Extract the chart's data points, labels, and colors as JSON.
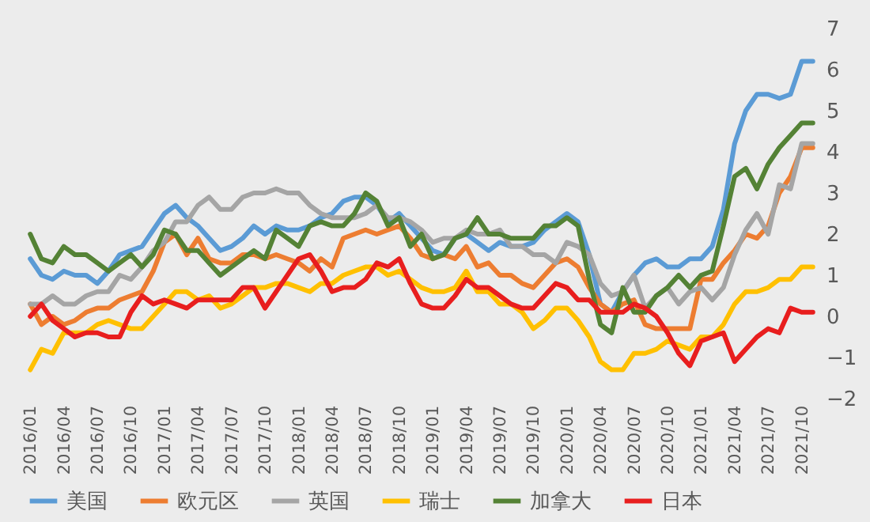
{
  "chart_data": {
    "type": "line",
    "categories": [
      "2016/01",
      null,
      null,
      "2016/04",
      null,
      null,
      "2016/07",
      null,
      null,
      "2016/10",
      null,
      null,
      "2017/01",
      null,
      null,
      "2017/04",
      null,
      null,
      "2017/07",
      null,
      null,
      "2017/10",
      null,
      null,
      "2018/01",
      null,
      null,
      "2018/04",
      null,
      null,
      "2018/07",
      null,
      null,
      "2018/10",
      null,
      null,
      "2019/01",
      null,
      null,
      "2019/04",
      null,
      null,
      "2019/07",
      null,
      null,
      "2019/10",
      null,
      null,
      "2020/01",
      null,
      null,
      "2020/04",
      null,
      null,
      "2020/07",
      null,
      null,
      "2020/10",
      null,
      null,
      "2021/01",
      null,
      null,
      "2021/04",
      null,
      null,
      "2021/07",
      null,
      null,
      "2021/10",
      null
    ],
    "series": [
      {
        "name": "美国",
        "color": "#5b9bd5",
        "values": [
          1.4,
          1.0,
          0.9,
          1.1,
          1.0,
          1.0,
          0.8,
          1.1,
          1.5,
          1.6,
          1.7,
          2.1,
          2.5,
          2.7,
          2.4,
          2.2,
          1.9,
          1.6,
          1.7,
          1.9,
          2.2,
          2.0,
          2.2,
          2.1,
          2.1,
          2.2,
          2.4,
          2.5,
          2.8,
          2.9,
          2.9,
          2.7,
          2.3,
          2.5,
          2.2,
          1.9,
          1.6,
          1.5,
          1.9,
          2.0,
          1.8,
          1.6,
          1.8,
          1.7,
          1.7,
          1.8,
          2.1,
          2.3,
          2.5,
          2.3,
          1.5,
          0.3,
          0.1,
          0.6,
          1.0,
          1.3,
          1.4,
          1.2,
          1.2,
          1.4,
          1.4,
          1.7,
          2.6,
          4.2,
          5.0,
          5.4,
          5.4,
          5.3,
          5.4,
          6.2,
          6.2
        ]
      },
      {
        "name": "欧元区",
        "color": "#ed7d31",
        "values": [
          0.3,
          -0.2,
          0.0,
          -0.2,
          -0.1,
          0.1,
          0.2,
          0.2,
          0.4,
          0.5,
          0.6,
          1.1,
          1.8,
          2.0,
          1.5,
          1.9,
          1.4,
          1.3,
          1.3,
          1.5,
          1.5,
          1.4,
          1.5,
          1.4,
          1.3,
          1.1,
          1.4,
          1.2,
          1.9,
          2.0,
          2.1,
          2.0,
          2.1,
          2.2,
          1.9,
          1.5,
          1.4,
          1.5,
          1.4,
          1.7,
          1.2,
          1.3,
          1.0,
          1.0,
          0.8,
          0.7,
          1.0,
          1.3,
          1.4,
          1.2,
          0.7,
          0.3,
          0.1,
          0.3,
          0.4,
          -0.2,
          -0.3,
          -0.3,
          -0.3,
          -0.3,
          0.9,
          0.9,
          1.3,
          1.6,
          2.0,
          1.9,
          2.2,
          3.0,
          3.4,
          4.1,
          4.1
        ]
      },
      {
        "name": "英国",
        "color": "#a5a5a5",
        "values": [
          0.3,
          0.3,
          0.5,
          0.3,
          0.3,
          0.5,
          0.6,
          0.6,
          1.0,
          0.9,
          1.2,
          1.6,
          1.8,
          2.3,
          2.3,
          2.7,
          2.9,
          2.6,
          2.6,
          2.9,
          3.0,
          3.0,
          3.1,
          3.0,
          3.0,
          2.7,
          2.5,
          2.4,
          2.4,
          2.4,
          2.5,
          2.7,
          2.4,
          2.4,
          2.3,
          2.1,
          1.8,
          1.9,
          1.9,
          2.1,
          2.0,
          2.0,
          2.1,
          1.7,
          1.7,
          1.5,
          1.5,
          1.3,
          1.8,
          1.7,
          1.5,
          0.8,
          0.5,
          0.6,
          1.0,
          0.2,
          0.5,
          0.7,
          0.3,
          0.6,
          0.7,
          0.4,
          0.7,
          1.5,
          2.1,
          2.5,
          2.0,
          3.2,
          3.1,
          4.2,
          4.2
        ]
      },
      {
        "name": "瑞士",
        "color": "#ffc000",
        "values": [
          -1.3,
          -0.8,
          -0.9,
          -0.4,
          -0.4,
          -0.4,
          -0.2,
          -0.1,
          -0.2,
          -0.3,
          -0.3,
          0.0,
          0.3,
          0.6,
          0.6,
          0.4,
          0.5,
          0.2,
          0.3,
          0.5,
          0.7,
          0.7,
          0.8,
          0.8,
          0.7,
          0.6,
          0.8,
          0.8,
          1.0,
          1.1,
          1.2,
          1.2,
          1.0,
          1.1,
          0.9,
          0.7,
          0.6,
          0.6,
          0.7,
          1.1,
          0.6,
          0.6,
          0.3,
          0.3,
          0.1,
          -0.3,
          -0.1,
          0.2,
          0.2,
          -0.1,
          -0.5,
          -1.1,
          -1.3,
          -1.3,
          -0.9,
          -0.9,
          -0.8,
          -0.6,
          -0.7,
          -0.8,
          -0.5,
          -0.5,
          -0.2,
          0.3,
          0.6,
          0.6,
          0.7,
          0.9,
          0.9,
          1.2,
          1.2
        ]
      },
      {
        "name": "加拿大",
        "color": "#548235",
        "values": [
          2.0,
          1.4,
          1.3,
          1.7,
          1.5,
          1.5,
          1.3,
          1.1,
          1.3,
          1.5,
          1.2,
          1.5,
          2.1,
          2.0,
          1.6,
          1.6,
          1.3,
          1.0,
          1.2,
          1.4,
          1.6,
          1.4,
          2.1,
          1.9,
          1.7,
          2.2,
          2.3,
          2.2,
          2.2,
          2.5,
          3.0,
          2.8,
          2.2,
          2.4,
          1.7,
          2.0,
          1.4,
          1.5,
          1.9,
          2.0,
          2.4,
          2.0,
          2.0,
          1.9,
          1.9,
          1.9,
          2.2,
          2.2,
          2.4,
          2.2,
          0.9,
          -0.2,
          -0.4,
          0.7,
          0.1,
          0.1,
          0.5,
          0.7,
          1.0,
          0.7,
          1.0,
          1.1,
          2.2,
          3.4,
          3.6,
          3.1,
          3.7,
          4.1,
          4.4,
          4.7,
          4.7
        ]
      },
      {
        "name": "日本",
        "color": "#e81e1e",
        "values": [
          0.0,
          0.3,
          -0.1,
          -0.3,
          -0.5,
          -0.4,
          -0.4,
          -0.5,
          -0.5,
          0.1,
          0.5,
          0.3,
          0.4,
          0.3,
          0.2,
          0.4,
          0.4,
          0.4,
          0.4,
          0.7,
          0.7,
          0.2,
          0.6,
          1.0,
          1.4,
          1.5,
          1.1,
          0.6,
          0.7,
          0.7,
          0.9,
          1.3,
          1.2,
          1.4,
          0.8,
          0.3,
          0.2,
          0.2,
          0.5,
          0.9,
          0.7,
          0.7,
          0.5,
          0.3,
          0.2,
          0.2,
          0.5,
          0.8,
          0.7,
          0.4,
          0.4,
          0.1,
          0.1,
          0.1,
          0.3,
          0.2,
          0.0,
          -0.4,
          -0.9,
          -1.2,
          -0.6,
          -0.5,
          -0.4,
          -1.1,
          -0.8,
          -0.5,
          -0.3,
          -0.4,
          0.2,
          0.1,
          0.1
        ]
      }
    ],
    "ylim": [
      -2,
      7
    ],
    "yticks": [
      -2,
      -1,
      0,
      1,
      2,
      3,
      4,
      5,
      6,
      7
    ],
    "grid": false,
    "legend": "bottom",
    "marker": "none",
    "line_style": "solid"
  }
}
